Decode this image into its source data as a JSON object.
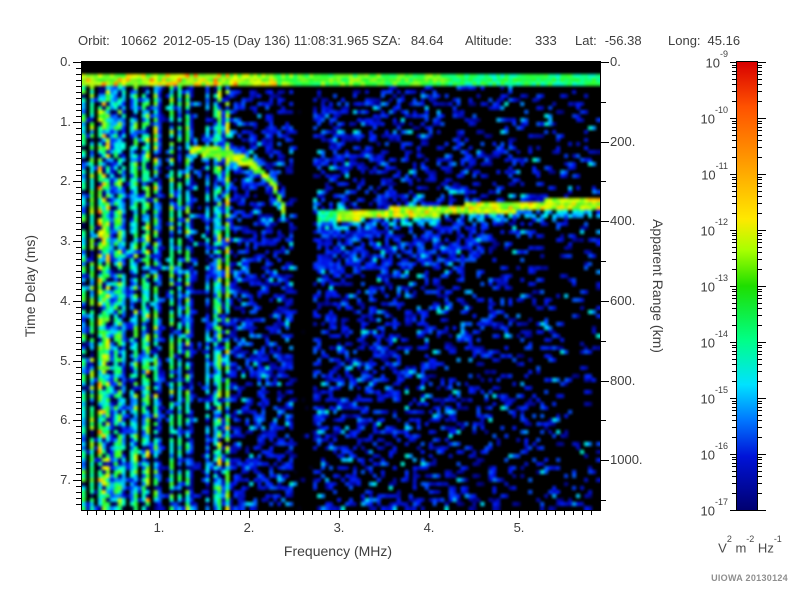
{
  "header": {
    "segments": [
      {
        "label": "Orbit:",
        "value": "10662"
      },
      {
        "label": "",
        "value": "2012-05-15 (Day 136) 11:08:31.965"
      },
      {
        "label": "SZA:",
        "value": "84.64"
      },
      {
        "label": "Altitude:",
        "value": "333"
      },
      {
        "label": "Lat:",
        "value": "-56.38"
      },
      {
        "label": "Long:",
        "value": "45.16"
      }
    ]
  },
  "footer": {
    "credit": "UIOWA 20130124"
  },
  "chart_data": {
    "type": "heatmap",
    "description": "Radar sounder ionogram spectrogram: received spectral density vs frequency and time delay",
    "x_axis": {
      "label": "Frequency (MHz)",
      "range": [
        0.15,
        5.9
      ],
      "major_ticks": [
        1,
        2,
        3,
        4,
        5
      ],
      "tick_labels": [
        "1.",
        "2.",
        "3.",
        "4.",
        "5."
      ],
      "minor_step": 0.1
    },
    "y_axis_left": {
      "label": "Time Delay (ms)",
      "range": [
        0,
        7.5
      ],
      "major_ticks": [
        0,
        1,
        2,
        3,
        4,
        5,
        6,
        7
      ],
      "tick_labels": [
        "0.",
        "1.",
        "2.",
        "3.",
        "4.",
        "5.",
        "6.",
        "7."
      ],
      "minor_step": 0.1
    },
    "y_axis_right": {
      "label": "Apparent Range (km)",
      "range": [
        0,
        1125
      ],
      "major_ticks": [
        0,
        200,
        400,
        600,
        800,
        1000
      ],
      "tick_labels": [
        "0.",
        "200.",
        "400.",
        "600.",
        "800.",
        "1000."
      ],
      "minor_step": 100
    },
    "colorbar": {
      "scale": "log",
      "value_min": "1e-17",
      "value_max": "1e-9",
      "ticks": [
        {
          "base": "10",
          "exp": "-9"
        },
        {
          "base": "10",
          "exp": "-10"
        },
        {
          "base": "10",
          "exp": "-11"
        },
        {
          "base": "10",
          "exp": "-12"
        },
        {
          "base": "10",
          "exp": "-13"
        },
        {
          "base": "10",
          "exp": "-14"
        },
        {
          "base": "10",
          "exp": "-15"
        },
        {
          "base": "10",
          "exp": "-16"
        },
        {
          "base": "10",
          "exp": "-17"
        }
      ],
      "unit_parts": [
        {
          "t": "V"
        },
        {
          "s": "2"
        },
        {
          "t": " m"
        },
        {
          "s": "-2"
        },
        {
          "t": " Hz"
        },
        {
          "s": "-1"
        }
      ],
      "gradient": [
        "#d80000",
        "#ff5200",
        "#ff9900",
        "#ffe800",
        "#a8ff00",
        "#1ede00",
        "#00ff86",
        "#00e2ff",
        "#0076ff",
        "#0013d8",
        "#000070"
      ]
    },
    "features": {
      "surface_band": {
        "t_start_ms": 0.18,
        "t_end_ms": 0.42
      },
      "stripe_region_max_mhz": 1.9,
      "bright_stripes_mhz": [
        0.27,
        0.42,
        0.57,
        0.75,
        0.9,
        1.13,
        1.33,
        1.76
      ],
      "absorption_gap_mhz": [
        2.49,
        2.72
      ],
      "ionosphere_trace_mhz_ms": [
        [
          1.38,
          1.47
        ],
        [
          1.6,
          1.5
        ],
        [
          1.8,
          1.57
        ],
        [
          2.0,
          1.68
        ],
        [
          2.15,
          1.85
        ],
        [
          2.27,
          2.05
        ],
        [
          2.35,
          2.3
        ],
        [
          2.4,
          2.52
        ]
      ],
      "ground_trace_mhz_ms": [
        [
          2.74,
          2.6
        ],
        [
          3.2,
          2.56
        ],
        [
          4.0,
          2.5
        ],
        [
          5.0,
          2.42
        ],
        [
          5.9,
          2.36
        ]
      ],
      "ground_trace_bright_from_mhz": 3.0,
      "noise_seed": 20130124
    }
  }
}
